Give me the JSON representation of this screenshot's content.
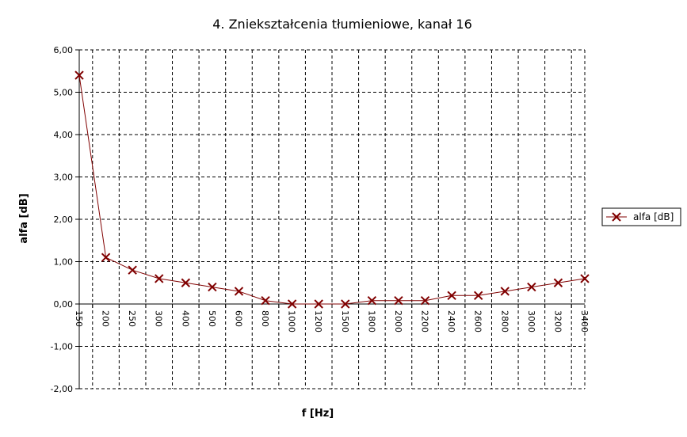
{
  "chart_data": {
    "type": "line",
    "title": "4. Zniekształcenia tłumieniowe, kanał 16",
    "xlabel": "f [Hz]",
    "ylabel": "alfa [dB]",
    "categories": [
      "150",
      "200",
      "250",
      "300",
      "400",
      "500",
      "600",
      "800",
      "1000",
      "1200",
      "1500",
      "1800",
      "2000",
      "2200",
      "2400",
      "2600",
      "2800",
      "3000",
      "3200",
      "3400"
    ],
    "ylim": [
      -2,
      6
    ],
    "yticks": [
      "6,00",
      "5,00",
      "4,00",
      "3,00",
      "2,00",
      "1,00",
      "0,00",
      "-1,00",
      "-2,00"
    ],
    "ytick_values": [
      6,
      5,
      4,
      3,
      2,
      1,
      0,
      -1,
      -2
    ],
    "grid": true,
    "legend_position": "right",
    "series": [
      {
        "name": "alfa [dB]",
        "color": "#800000",
        "marker": "x",
        "values": [
          5.4,
          1.1,
          0.8,
          0.6,
          0.5,
          0.4,
          0.3,
          0.08,
          0.0,
          0.0,
          0.0,
          0.08,
          0.08,
          0.08,
          0.2,
          0.2,
          0.3,
          0.4,
          0.5,
          0.6
        ]
      }
    ]
  }
}
